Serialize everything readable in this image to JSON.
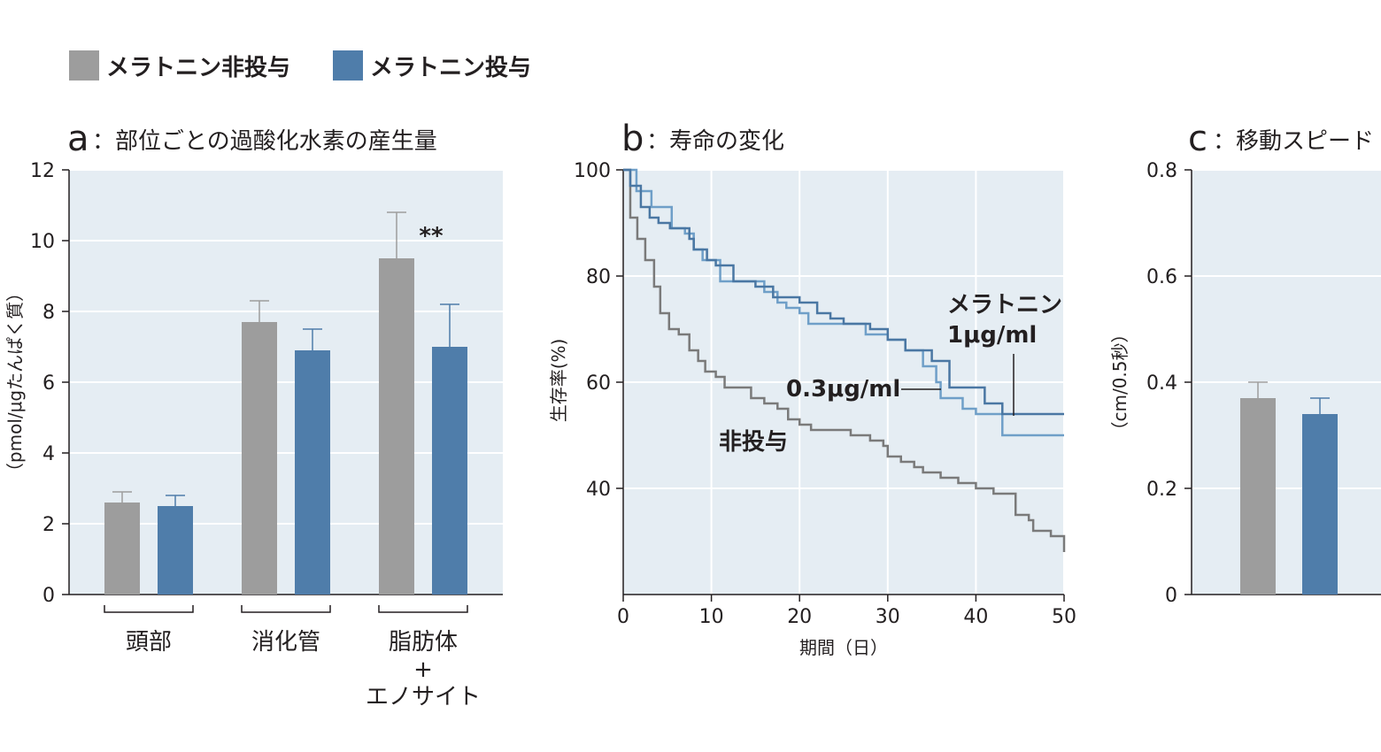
{
  "legend": {
    "items": [
      {
        "label": "メラトニン非投与",
        "color": "#9d9d9d"
      },
      {
        "label": "メラトニン投与",
        "color": "#4f7daa"
      }
    ]
  },
  "colors": {
    "panel_bg": "#e5edf3",
    "grid": "#ffffff",
    "control": "#9d9d9d",
    "melatonin": "#4f7daa",
    "surv_control": "#7a7a7a",
    "surv_1ug": "#4a77a3",
    "surv_03ug": "#6f9fc8"
  },
  "panels": {
    "a": {
      "letter": "a",
      "title": "：部位ごとの過酸化水素の産生量",
      "ylabel": "（pmol/μgたんぱく質）",
      "significance": "**"
    },
    "b": {
      "letter": "b",
      "title": "：寿命の変化",
      "ylabel": "生存率(%)",
      "xlabel": "期間（日）",
      "annotations": {
        "mel1_line1": "メラトニン",
        "mel1_line2": "1μg/ml",
        "mel03": "0.3μg/ml",
        "control": "非投与"
      }
    },
    "c": {
      "letter": "c",
      "title": "：移動スピード",
      "ylabel": "（cm/0.5秒）"
    }
  },
  "chart_data": [
    {
      "type": "bar",
      "title": "部位ごとの過酸化水素の産生量",
      "ylabel": "（pmol/μgたんぱく質）",
      "categories": [
        "頭部",
        "消化管",
        "脂肪体\n+\nエノサイト"
      ],
      "category_lines": [
        [
          "頭部"
        ],
        [
          "消化管"
        ],
        [
          "脂肪体",
          "+",
          "エノサイト"
        ]
      ],
      "series": [
        {
          "name": "メラトニン非投与",
          "values": [
            2.6,
            7.7,
            9.5
          ],
          "errors": [
            0.3,
            0.6,
            1.3
          ]
        },
        {
          "name": "メラトニン投与",
          "values": [
            2.5,
            6.9,
            7.0
          ],
          "errors": [
            0.3,
            0.6,
            1.2
          ]
        }
      ],
      "ylim": [
        0,
        12
      ],
      "yticks": [
        0,
        2,
        4,
        6,
        8,
        10,
        12
      ],
      "grid": true
    },
    {
      "type": "line",
      "title": "寿命の変化",
      "xlabel": "期間（日）",
      "ylabel": "生存率(%)",
      "xlim": [
        0,
        50
      ],
      "ylim": [
        20,
        100
      ],
      "xticks": [
        0,
        10,
        20,
        30,
        40,
        50
      ],
      "yticks": [
        40,
        60,
        80,
        100
      ],
      "grid": true,
      "series": [
        {
          "name": "非投与",
          "x": [
            0,
            0.8,
            1.6,
            2.5,
            3.5,
            4.2,
            5.2,
            6.3,
            7.5,
            8.5,
            9.3,
            10.5,
            11.5,
            14.5,
            16,
            17.5,
            18.7,
            20,
            21.3,
            25.8,
            28,
            29.5,
            30,
            31.5,
            33,
            34,
            36,
            38,
            40,
            42,
            44.5,
            46,
            46.5,
            48.5,
            50
          ],
          "y": [
            100,
            91,
            87,
            83,
            78,
            73,
            70,
            69,
            66,
            64,
            62,
            61,
            59,
            57,
            56,
            55,
            53,
            52,
            51,
            50,
            49,
            48,
            46,
            45,
            44,
            43,
            42,
            41,
            40,
            39,
            35,
            34,
            32,
            31,
            28
          ]
        },
        {
          "name": "1μg/ml",
          "x": [
            0,
            0.8,
            2,
            3,
            4,
            5.3,
            7.5,
            8,
            9.5,
            10.5,
            12.5,
            15,
            17,
            20,
            22,
            23.5,
            25,
            28,
            30,
            32,
            35,
            37,
            41,
            43,
            50
          ],
          "y": [
            100,
            97,
            93,
            91,
            90,
            89,
            87,
            85,
            83,
            82,
            79,
            78,
            76,
            75,
            73,
            72,
            71,
            70,
            68,
            66,
            64,
            59,
            56,
            54,
            54
          ]
        },
        {
          "name": "0.3μg/ml",
          "x": [
            0,
            1.5,
            3.2,
            5.5,
            7,
            8,
            9,
            11,
            16,
            17.5,
            18.5,
            20,
            21,
            27.5,
            30,
            32,
            34,
            35.5,
            36,
            38.5,
            40,
            43,
            50
          ],
          "y": [
            100,
            96,
            93,
            89,
            88,
            85,
            83,
            79,
            77,
            75,
            74,
            73,
            71,
            69,
            68,
            66,
            63,
            60,
            57,
            55,
            54,
            50,
            50
          ]
        }
      ]
    },
    {
      "type": "bar",
      "title": "移動スピード",
      "ylabel": "（cm/0.5秒）",
      "series": [
        {
          "name": "メラトニン非投与",
          "values": [
            0.37
          ],
          "errors": [
            0.03
          ]
        },
        {
          "name": "メラトニン投与",
          "values": [
            0.34
          ],
          "errors": [
            0.03
          ]
        }
      ],
      "ylim": [
        0,
        0.8
      ],
      "yticks": [
        0,
        0.2,
        0.4,
        0.6,
        0.8
      ],
      "grid": true
    }
  ]
}
